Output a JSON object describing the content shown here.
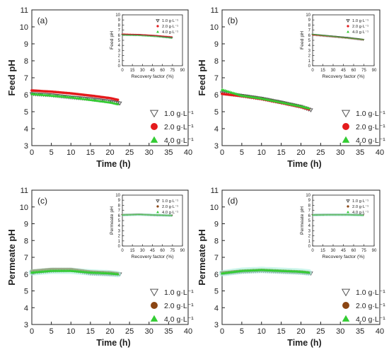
{
  "chart_data": [
    {
      "type": "scatter",
      "panel_label": "(a)",
      "xlabel": "Time (h)",
      "ylabel": "Feed pH",
      "xlim": [
        0,
        40
      ],
      "ylim": [
        3,
        11
      ],
      "xticks": [
        0,
        5,
        10,
        15,
        20,
        25,
        30,
        35,
        40
      ],
      "yticks": [
        3,
        4,
        5,
        6,
        7,
        8,
        9,
        10,
        11
      ],
      "legend_position": "bottom-right",
      "series": [
        {
          "name": "1.0 g·L⁻¹",
          "marker": "triangle-down-open",
          "color": "#555555",
          "points": [
            [
              0,
              6.05
            ],
            [
              5,
              5.98
            ],
            [
              10,
              5.85
            ],
            [
              15,
              5.75
            ],
            [
              20,
              5.6
            ],
            [
              22.5,
              5.5
            ]
          ]
        },
        {
          "name": "2.0 g·L⁻¹",
          "marker": "circle",
          "color": "#e41a1c",
          "points": [
            [
              0,
              6.25
            ],
            [
              5,
              6.18
            ],
            [
              10,
              6.08
            ],
            [
              15,
              5.95
            ],
            [
              20,
              5.8
            ],
            [
              22,
              5.7
            ]
          ]
        },
        {
          "name": "4.0 g·L⁻¹",
          "marker": "triangle-up",
          "color": "#33cc33",
          "points": [
            [
              0,
              6.05
            ],
            [
              5,
              5.95
            ],
            [
              10,
              5.85
            ],
            [
              15,
              5.7
            ],
            [
              20,
              5.55
            ],
            [
              22,
              5.45
            ]
          ]
        }
      ],
      "inset": {
        "xlabel": "Recovery factor (%)",
        "ylabel": "Feed pH",
        "xlim": [
          0,
          90
        ],
        "ylim": [
          0,
          10
        ],
        "xticks": [
          0,
          15,
          30,
          45,
          60,
          75,
          90
        ],
        "yticks": [
          0,
          1,
          2,
          3,
          4,
          5,
          6,
          7,
          8,
          9,
          10
        ],
        "series": [
          {
            "name": "1.0 g·L⁻¹",
            "points": [
              [
                0,
                6.1
              ],
              [
                25,
                6.05
              ],
              [
                50,
                5.85
              ],
              [
                75,
                5.5
              ]
            ]
          },
          {
            "name": "2.0 g·L⁻¹",
            "points": [
              [
                0,
                6.25
              ],
              [
                25,
                6.15
              ],
              [
                50,
                5.95
              ],
              [
                75,
                5.7
              ]
            ]
          },
          {
            "name": "4.0 g·L⁻¹",
            "points": [
              [
                0,
                6.05
              ],
              [
                25,
                5.95
              ],
              [
                50,
                5.75
              ],
              [
                75,
                5.45
              ]
            ]
          }
        ]
      }
    },
    {
      "type": "scatter",
      "panel_label": "(b)",
      "xlabel": "Time (h)",
      "ylabel": "Feed pH",
      "xlim": [
        0,
        40
      ],
      "ylim": [
        3,
        11
      ],
      "xticks": [
        0,
        5,
        10,
        15,
        20,
        25,
        30,
        35,
        40
      ],
      "yticks": [
        3,
        4,
        5,
        6,
        7,
        8,
        9,
        10,
        11
      ],
      "legend_position": "bottom-right",
      "series": [
        {
          "name": "1.0 g·L⁻¹",
          "marker": "triangle-down-open",
          "color": "#555555",
          "points": [
            [
              0,
              6.1
            ],
            [
              5,
              5.95
            ],
            [
              10,
              5.78
            ],
            [
              15,
              5.55
            ],
            [
              20,
              5.3
            ],
            [
              22.5,
              5.1
            ]
          ]
        },
        {
          "name": "2.0 g·L⁻¹",
          "marker": "circle",
          "color": "#e41a1c",
          "points": [
            [
              0,
              6.05
            ],
            [
              5,
              5.92
            ],
            [
              10,
              5.75
            ],
            [
              15,
              5.52
            ],
            [
              20,
              5.28
            ],
            [
              22,
              5.15
            ]
          ]
        },
        {
          "name": "4.0 g·L⁻¹",
          "marker": "triangle-up",
          "color": "#33cc33",
          "points": [
            [
              0,
              6.3
            ],
            [
              5,
              5.95
            ],
            [
              10,
              5.78
            ],
            [
              15,
              5.55
            ],
            [
              20,
              5.32
            ],
            [
              22,
              5.2
            ]
          ]
        }
      ],
      "inset": {
        "xlabel": "Recovery factor (%)",
        "ylabel": "Feed pH",
        "xlim": [
          0,
          90
        ],
        "ylim": [
          0,
          10
        ],
        "xticks": [
          0,
          15,
          30,
          45,
          60,
          75,
          90
        ],
        "yticks": [
          0,
          1,
          2,
          3,
          4,
          5,
          6,
          7,
          8,
          9,
          10
        ],
        "series": [
          {
            "name": "1.0 g·L⁻¹",
            "points": [
              [
                0,
                6.1
              ],
              [
                25,
                5.8
              ],
              [
                50,
                5.5
              ],
              [
                75,
                5.1
              ]
            ]
          },
          {
            "name": "2.0 g·L⁻¹",
            "points": [
              [
                0,
                6.05
              ],
              [
                25,
                5.78
              ],
              [
                50,
                5.45
              ],
              [
                75,
                5.1
              ]
            ]
          },
          {
            "name": "4.0 g·L⁻¹",
            "points": [
              [
                0,
                6.2
              ],
              [
                25,
                5.85
              ],
              [
                50,
                5.5
              ],
              [
                75,
                5.15
              ]
            ]
          }
        ]
      }
    },
    {
      "type": "scatter",
      "panel_label": "(c)",
      "xlabel": "Time (h)",
      "ylabel": "Permeate pH",
      "xlim": [
        0,
        40
      ],
      "ylim": [
        3,
        11
      ],
      "xticks": [
        0,
        5,
        10,
        15,
        20,
        25,
        30,
        35,
        40
      ],
      "yticks": [
        3,
        4,
        5,
        6,
        7,
        8,
        9,
        10,
        11
      ],
      "legend_position": "bottom-right",
      "series": [
        {
          "name": "1.0 g·L⁻¹",
          "marker": "triangle-down-open",
          "color": "#555555",
          "points": [
            [
              0,
              6.1
            ],
            [
              5,
              6.2
            ],
            [
              10,
              6.25
            ],
            [
              15,
              6.05
            ],
            [
              20,
              6.0
            ],
            [
              22.5,
              6.0
            ]
          ]
        },
        {
          "name": "2.0 g·L⁻¹",
          "marker": "circle",
          "color": "#8b4513",
          "points": [
            [
              0,
              6.2
            ],
            [
              5,
              6.3
            ],
            [
              10,
              6.3
            ],
            [
              15,
              6.15
            ],
            [
              20,
              6.1
            ],
            [
              22,
              6.05
            ]
          ]
        },
        {
          "name": "4.0 g·L⁻¹",
          "marker": "triangle-up",
          "color": "#33cc33",
          "points": [
            [
              0,
              6.1
            ],
            [
              5,
              6.2
            ],
            [
              10,
              6.2
            ],
            [
              15,
              6.1
            ],
            [
              20,
              6.05
            ],
            [
              22,
              6.0
            ]
          ]
        }
      ],
      "inset": {
        "xlabel": "Recovery factor (%)",
        "ylabel": "Permeate pH",
        "xlim": [
          0,
          90
        ],
        "ylim": [
          0,
          10
        ],
        "xticks": [
          0,
          15,
          30,
          45,
          60,
          75,
          90
        ],
        "yticks": [
          0,
          1,
          2,
          3,
          4,
          5,
          6,
          7,
          8,
          9,
          10
        ],
        "series": [
          {
            "name": "1.0 g·L⁻¹",
            "points": [
              [
                0,
                6.1
              ],
              [
                25,
                6.2
              ],
              [
                50,
                6.05
              ],
              [
                75,
                6.0
              ]
            ]
          },
          {
            "name": "2.0 g·L⁻¹",
            "points": [
              [
                0,
                6.2
              ],
              [
                25,
                6.3
              ],
              [
                50,
                6.1
              ],
              [
                75,
                6.05
              ]
            ]
          },
          {
            "name": "4.0 g·L⁻¹",
            "points": [
              [
                0,
                6.1
              ],
              [
                25,
                6.2
              ],
              [
                50,
                6.1
              ],
              [
                75,
                6.0
              ]
            ]
          }
        ]
      }
    },
    {
      "type": "scatter",
      "panel_label": "(d)",
      "xlabel": "Time (h)",
      "ylabel": "Permeate pH",
      "xlim": [
        0,
        40
      ],
      "ylim": [
        3,
        11
      ],
      "xticks": [
        0,
        5,
        10,
        15,
        20,
        25,
        30,
        35,
        40
      ],
      "yticks": [
        3,
        4,
        5,
        6,
        7,
        8,
        9,
        10,
        11
      ],
      "legend_position": "bottom-right",
      "series": [
        {
          "name": "1.0 g·L⁻¹",
          "marker": "triangle-down-open",
          "color": "#555555",
          "points": [
            [
              0,
              6.05
            ],
            [
              5,
              6.15
            ],
            [
              10,
              6.2
            ],
            [
              15,
              6.15
            ],
            [
              20,
              6.1
            ],
            [
              22.5,
              6.05
            ]
          ]
        },
        {
          "name": "2.0 g·L⁻¹",
          "marker": "circle",
          "color": "#8b4513",
          "points": [
            [
              0,
              6.1
            ],
            [
              5,
              6.2
            ],
            [
              10,
              6.25
            ],
            [
              15,
              6.2
            ],
            [
              20,
              6.15
            ],
            [
              22,
              6.1
            ]
          ]
        },
        {
          "name": "4.0 g·L⁻¹",
          "marker": "triangle-up",
          "color": "#33cc33",
          "points": [
            [
              0,
              6.05
            ],
            [
              5,
              6.2
            ],
            [
              10,
              6.25
            ],
            [
              15,
              6.2
            ],
            [
              20,
              6.15
            ],
            [
              22,
              6.1
            ]
          ]
        }
      ],
      "inset": {
        "xlabel": "Recovery factor (%)",
        "ylabel": "Permeate pH",
        "xlim": [
          0,
          90
        ],
        "ylim": [
          0,
          10
        ],
        "xticks": [
          0,
          15,
          30,
          45,
          60,
          75,
          90
        ],
        "yticks": [
          0,
          1,
          2,
          3,
          4,
          5,
          6,
          7,
          8,
          9,
          10
        ],
        "series": [
          {
            "name": "1.0 g·L⁻¹",
            "points": [
              [
                0,
                6.1
              ],
              [
                25,
                6.15
              ],
              [
                50,
                6.15
              ],
              [
                75,
                6.1
              ]
            ]
          },
          {
            "name": "2.0 g·L⁻¹",
            "points": [
              [
                0,
                6.15
              ],
              [
                25,
                6.2
              ],
              [
                50,
                6.15
              ],
              [
                75,
                6.1
              ]
            ]
          },
          {
            "name": "4.0 g·L⁻¹",
            "points": [
              [
                0,
                6.1
              ],
              [
                25,
                6.15
              ],
              [
                50,
                6.15
              ],
              [
                75,
                6.05
              ]
            ]
          }
        ]
      }
    }
  ]
}
